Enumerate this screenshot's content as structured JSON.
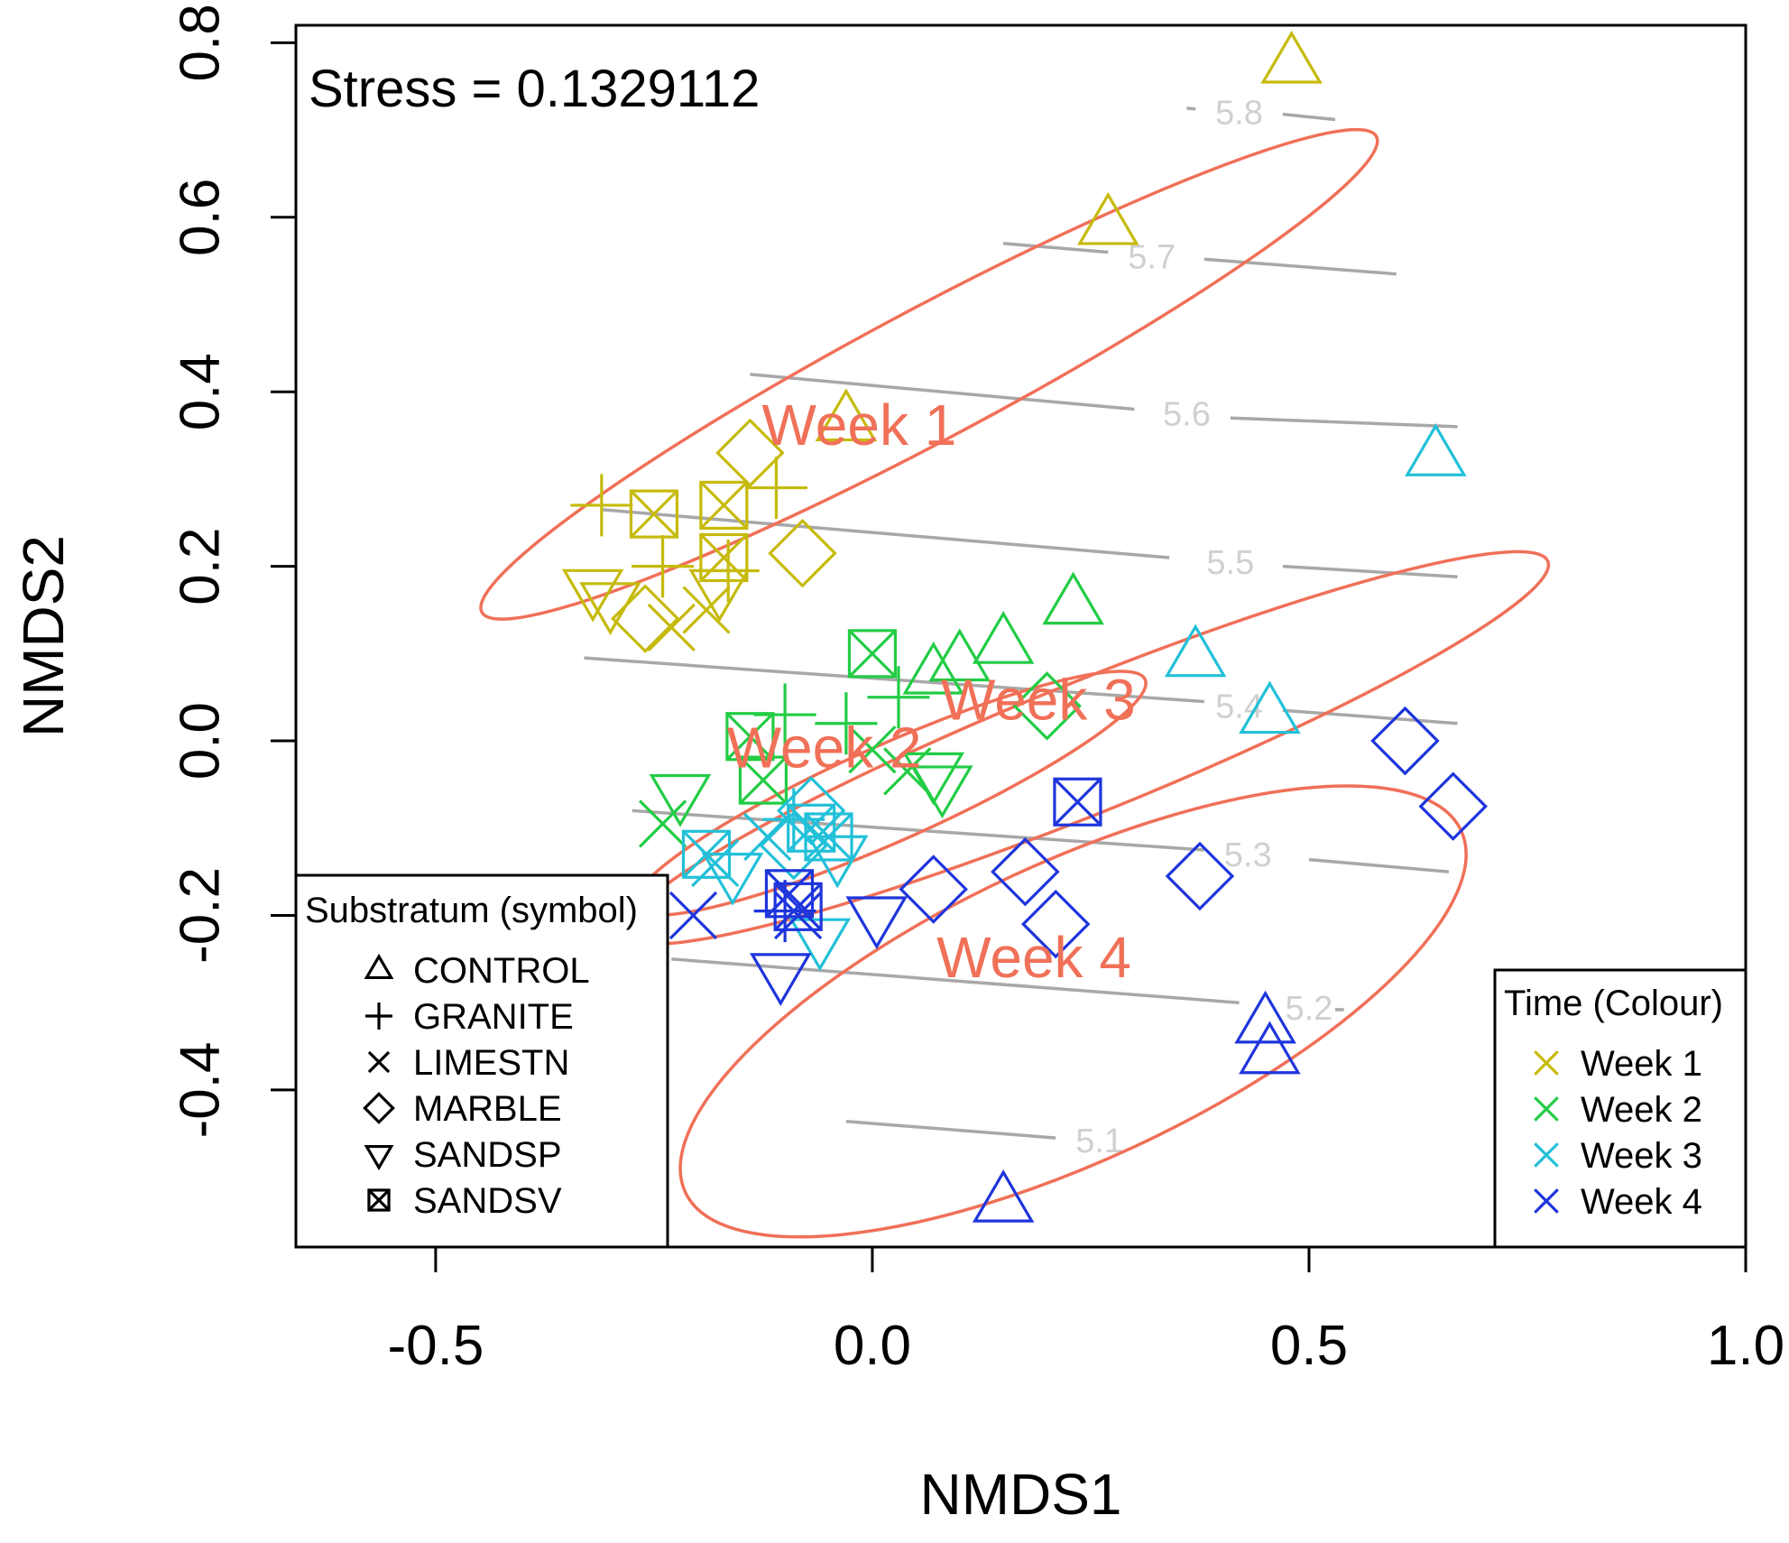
{
  "colors": {
    "week1": "#C6BA0C",
    "week2": "#22CC44",
    "week3": "#22C0D8",
    "week4": "#1E35DC",
    "ellipse": "#F07058",
    "contour": "#A8A8A8",
    "contour_label": "#D0D0D0",
    "axis": "#000000"
  },
  "chart_data": {
    "type": "scatter",
    "title": "",
    "xlabel": "NMDS1",
    "ylabel": "NMDS2",
    "xlim": [
      -0.66,
      1.0
    ],
    "ylim": [
      -0.58,
      0.82
    ],
    "xticks": [
      -0.5,
      0.0,
      0.5,
      1.0
    ],
    "xtick_labels": [
      "-0.5",
      "0.0",
      "0.5",
      "1.0"
    ],
    "yticks": [
      -0.4,
      -0.2,
      0.0,
      0.2,
      0.4,
      0.6,
      0.8
    ],
    "ytick_labels": [
      "-0.4",
      "-0.2",
      "0.0",
      "0.2",
      "0.4",
      "0.6",
      "0.8"
    ],
    "stress_label": "Stress = 0.1329112",
    "substratum_legend": {
      "title": "Substratum (symbol)",
      "placement": "bottom-left",
      "entries": [
        {
          "label": "CONTROL",
          "symbol": "triangle"
        },
        {
          "label": "GRANITE",
          "symbol": "plus"
        },
        {
          "label": "LIMESTN",
          "symbol": "cross"
        },
        {
          "label": "MARBLE",
          "symbol": "diamond"
        },
        {
          "label": "SANDSP",
          "symbol": "triangle-down"
        },
        {
          "label": "SANDSV",
          "symbol": "boxcross"
        }
      ]
    },
    "time_legend": {
      "title": "Time (Colour)",
      "placement": "bottom-right",
      "entries": [
        {
          "label": "Week 1",
          "week": 1
        },
        {
          "label": "Week 2",
          "week": 2
        },
        {
          "label": "Week 3",
          "week": 3
        },
        {
          "label": "Week 4",
          "week": 4
        }
      ]
    },
    "contours": [
      {
        "label": "5.1",
        "points": [
          [
            -0.03,
            -0.436
          ],
          [
            0.21,
            -0.455
          ]
        ],
        "label_at": [
          0.26,
          -0.458
        ]
      },
      {
        "label": "5.2",
        "points": [
          [
            -0.23,
            -0.25
          ],
          [
            0.42,
            -0.3
          ]
        ],
        "label_at": [
          0.5,
          -0.306
        ],
        "extra": [
          [
            0.53,
            -0.308
          ],
          [
            0.54,
            -0.308
          ]
        ]
      },
      {
        "label": "5.3",
        "points": [
          [
            -0.275,
            -0.08
          ],
          [
            0.38,
            -0.125
          ]
        ],
        "label_at": [
          0.43,
          -0.13
        ],
        "extra": [
          [
            0.5,
            -0.136
          ],
          [
            0.66,
            -0.15
          ]
        ]
      },
      {
        "label": "5.4",
        "points": [
          [
            -0.33,
            0.095
          ],
          [
            0.38,
            0.045
          ]
        ],
        "label_at": [
          0.42,
          0.04
        ],
        "extra": [
          [
            0.47,
            0.035
          ],
          [
            0.67,
            0.02
          ]
        ]
      },
      {
        "label": "5.5",
        "points": [
          [
            -0.31,
            0.265
          ],
          [
            0.34,
            0.21
          ]
        ],
        "label_at": [
          0.41,
          0.205
        ],
        "extra": [
          [
            0.47,
            0.2
          ],
          [
            0.67,
            0.188
          ]
        ]
      },
      {
        "label": "5.6",
        "points": [
          [
            -0.14,
            0.42
          ],
          [
            0.3,
            0.38
          ]
        ],
        "label_at": [
          0.36,
          0.375
        ],
        "extra": [
          [
            0.41,
            0.37
          ],
          [
            0.67,
            0.36
          ]
        ]
      },
      {
        "label": "5.7",
        "points": [
          [
            0.15,
            0.57
          ],
          [
            0.27,
            0.56
          ]
        ],
        "label_at": [
          0.32,
          0.555
        ],
        "extra": [
          [
            0.38,
            0.552
          ],
          [
            0.6,
            0.535
          ]
        ]
      },
      {
        "label": "5.8",
        "points": [
          [
            0.36,
            0.725
          ],
          [
            0.37,
            0.724
          ]
        ],
        "label_at": [
          0.42,
          0.72
        ],
        "extra": [
          [
            0.47,
            0.718
          ],
          [
            0.53,
            0.712
          ]
        ]
      }
    ],
    "ellipses": [
      {
        "label": "Week 1",
        "cx": 0.065,
        "cy": 0.42,
        "rx": 0.58,
        "ry": 0.075,
        "angle_deg": -28,
        "label_at": [
          -0.015,
          0.36
        ]
      },
      {
        "label": "Week 2",
        "cx": 0.02,
        "cy": -0.06,
        "rx": 0.32,
        "ry": 0.055,
        "angle_deg": -24,
        "label_at": [
          -0.055,
          -0.01
        ]
      },
      {
        "label": "Week 3",
        "cx": 0.245,
        "cy": -0.008,
        "rx": 0.57,
        "ry": 0.075,
        "angle_deg": -22,
        "label_at": [
          0.19,
          0.045
        ]
      },
      {
        "label": "Week 4",
        "cx": 0.23,
        "cy": -0.31,
        "rx": 0.49,
        "ry": 0.17,
        "angle_deg": -25,
        "label_at": [
          0.185,
          -0.25
        ]
      }
    ],
    "series": [
      {
        "name": "Week 1",
        "week": 1,
        "points": [
          {
            "x": 0.48,
            "y": 0.775,
            "shape": "triangle"
          },
          {
            "x": 0.27,
            "y": 0.59,
            "shape": "triangle"
          },
          {
            "x": -0.03,
            "y": 0.365,
            "shape": "triangle"
          },
          {
            "x": -0.31,
            "y": 0.27,
            "shape": "plus"
          },
          {
            "x": -0.11,
            "y": 0.29,
            "shape": "plus"
          },
          {
            "x": -0.24,
            "y": 0.2,
            "shape": "plus"
          },
          {
            "x": -0.165,
            "y": 0.195,
            "shape": "plus"
          },
          {
            "x": -0.23,
            "y": 0.13,
            "shape": "cross"
          },
          {
            "x": -0.19,
            "y": 0.15,
            "shape": "cross"
          },
          {
            "x": -0.14,
            "y": 0.33,
            "shape": "diamond"
          },
          {
            "x": -0.08,
            "y": 0.215,
            "shape": "diamond"
          },
          {
            "x": -0.26,
            "y": 0.14,
            "shape": "diamond"
          },
          {
            "x": -0.32,
            "y": 0.175,
            "shape": "triangle-down"
          },
          {
            "x": -0.3,
            "y": 0.16,
            "shape": "triangle-down"
          },
          {
            "x": -0.175,
            "y": 0.175,
            "shape": "triangle-down"
          },
          {
            "x": -0.25,
            "y": 0.26,
            "shape": "boxcross"
          },
          {
            "x": -0.17,
            "y": 0.27,
            "shape": "boxcross"
          },
          {
            "x": -0.17,
            "y": 0.21,
            "shape": "boxcross"
          }
        ]
      },
      {
        "name": "Week 2",
        "week": 2,
        "points": [
          {
            "x": 0.23,
            "y": 0.155,
            "shape": "triangle"
          },
          {
            "x": 0.15,
            "y": 0.11,
            "shape": "triangle"
          },
          {
            "x": 0.1,
            "y": 0.09,
            "shape": "triangle"
          },
          {
            "x": 0.07,
            "y": 0.075,
            "shape": "triangle"
          },
          {
            "x": 0.03,
            "y": 0.05,
            "shape": "plus"
          },
          {
            "x": -0.03,
            "y": 0.02,
            "shape": "plus"
          },
          {
            "x": -0.1,
            "y": 0.03,
            "shape": "plus"
          },
          {
            "x": -0.24,
            "y": -0.095,
            "shape": "cross"
          },
          {
            "x": 0.04,
            "y": -0.035,
            "shape": "cross"
          },
          {
            "x": 0.0,
            "y": -0.01,
            "shape": "cross"
          },
          {
            "x": 0.2,
            "y": 0.04,
            "shape": "diamond"
          },
          {
            "x": -0.22,
            "y": -0.06,
            "shape": "triangle-down"
          },
          {
            "x": 0.07,
            "y": -0.035,
            "shape": "triangle-down"
          },
          {
            "x": 0.08,
            "y": -0.05,
            "shape": "triangle-down"
          },
          {
            "x": 0.0,
            "y": 0.1,
            "shape": "boxcross"
          },
          {
            "x": -0.14,
            "y": 0.005,
            "shape": "boxcross"
          },
          {
            "x": -0.125,
            "y": -0.045,
            "shape": "boxcross"
          }
        ]
      },
      {
        "name": "Week 3",
        "week": 3,
        "points": [
          {
            "x": 0.645,
            "y": 0.325,
            "shape": "triangle"
          },
          {
            "x": 0.37,
            "y": 0.095,
            "shape": "triangle"
          },
          {
            "x": 0.455,
            "y": 0.03,
            "shape": "triangle"
          },
          {
            "x": -0.09,
            "y": -0.09,
            "shape": "plus"
          },
          {
            "x": -0.18,
            "y": -0.14,
            "shape": "cross"
          },
          {
            "x": -0.12,
            "y": -0.11,
            "shape": "cross"
          },
          {
            "x": -0.07,
            "y": -0.08,
            "shape": "diamond"
          },
          {
            "x": -0.09,
            "y": -0.12,
            "shape": "diamond"
          },
          {
            "x": -0.04,
            "y": -0.13,
            "shape": "triangle-down"
          },
          {
            "x": -0.06,
            "y": -0.225,
            "shape": "triangle-down"
          },
          {
            "x": -0.16,
            "y": -0.15,
            "shape": "triangle-down"
          },
          {
            "x": -0.19,
            "y": -0.13,
            "shape": "boxcross"
          },
          {
            "x": -0.07,
            "y": -0.1,
            "shape": "boxcross"
          },
          {
            "x": -0.05,
            "y": -0.11,
            "shape": "boxcross"
          }
        ]
      },
      {
        "name": "Week 4",
        "week": 4,
        "points": [
          {
            "x": 0.45,
            "y": -0.325,
            "shape": "triangle"
          },
          {
            "x": 0.455,
            "y": -0.36,
            "shape": "triangle"
          },
          {
            "x": 0.15,
            "y": -0.53,
            "shape": "triangle"
          },
          {
            "x": -0.1,
            "y": -0.195,
            "shape": "plus"
          },
          {
            "x": -0.205,
            "y": -0.2,
            "shape": "cross"
          },
          {
            "x": -0.085,
            "y": -0.2,
            "shape": "cross"
          },
          {
            "x": 0.61,
            "y": 0.0,
            "shape": "diamond"
          },
          {
            "x": 0.665,
            "y": -0.075,
            "shape": "diamond"
          },
          {
            "x": 0.07,
            "y": -0.17,
            "shape": "diamond"
          },
          {
            "x": 0.175,
            "y": -0.15,
            "shape": "diamond"
          },
          {
            "x": 0.21,
            "y": -0.21,
            "shape": "diamond"
          },
          {
            "x": 0.375,
            "y": -0.155,
            "shape": "diamond"
          },
          {
            "x": 0.005,
            "y": -0.2,
            "shape": "triangle-down"
          },
          {
            "x": -0.105,
            "y": -0.265,
            "shape": "triangle-down"
          },
          {
            "x": 0.235,
            "y": -0.07,
            "shape": "boxcross"
          },
          {
            "x": -0.095,
            "y": -0.175,
            "shape": "boxcross"
          },
          {
            "x": -0.085,
            "y": -0.19,
            "shape": "boxcross"
          }
        ]
      }
    ]
  }
}
